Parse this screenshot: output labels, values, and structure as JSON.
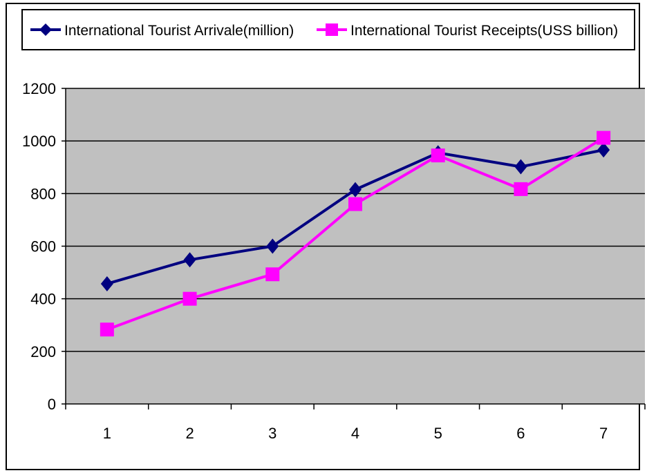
{
  "chart_data": {
    "type": "line",
    "title": "",
    "xlabel": "",
    "ylabel": "",
    "x": [
      1,
      2,
      3,
      4,
      5,
      6,
      7
    ],
    "ylim": [
      0,
      1200
    ],
    "yticks": [
      0,
      200,
      400,
      600,
      800,
      1000,
      1200
    ],
    "grid": true,
    "legend": "top",
    "plot_background": "#c0c0c0",
    "series": [
      {
        "name": "International Tourist Arrivale(million)",
        "color": "#000080",
        "marker": "diamond",
        "values": [
          457,
          548,
          600,
          815,
          955,
          902,
          966
        ]
      },
      {
        "name": "International Tourist Receipts(USS billion)",
        "color": "#ff00ff",
        "marker": "square",
        "values": [
          283,
          400,
          493,
          760,
          945,
          817,
          1012
        ]
      }
    ]
  }
}
